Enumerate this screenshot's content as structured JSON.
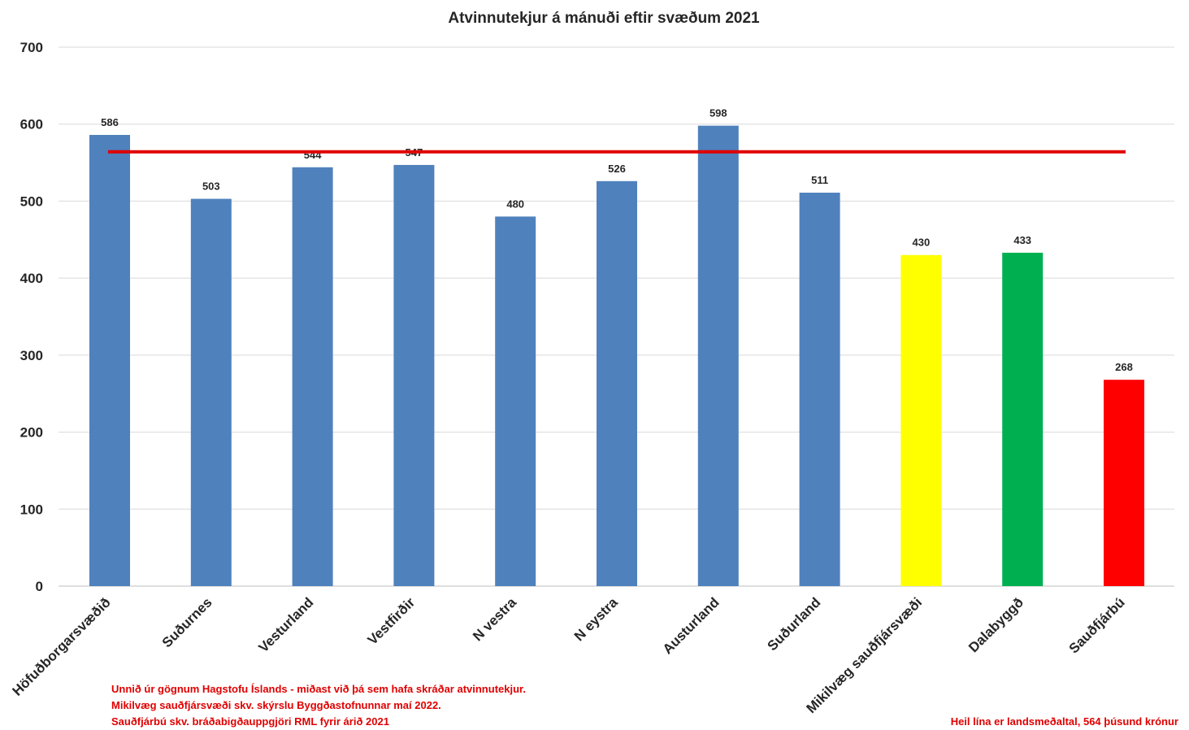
{
  "chart_data": {
    "type": "bar",
    "title": "Atvinnutekjur á mánuði eftir svæðum 2021",
    "categories": [
      "Höfuðborgarsvæðið",
      "Suðurnes",
      "Vesturland",
      "Vestfirðir",
      "N vestra",
      "N eystra",
      "Austurland",
      "Suðurland",
      "Mikilvæg sauðfjársvæði",
      "Dalabyggð",
      "Sauðfjárbú"
    ],
    "values": [
      586,
      503,
      544,
      547,
      480,
      526,
      598,
      511,
      430,
      433,
      268
    ],
    "bar_colors": [
      "#4f81bd",
      "#4f81bd",
      "#4f81bd",
      "#4f81bd",
      "#4f81bd",
      "#4f81bd",
      "#4f81bd",
      "#4f81bd",
      "#ffff00",
      "#00b050",
      "#ff0000"
    ],
    "ylim": [
      0,
      700
    ],
    "yticks": [
      "0",
      "100",
      "200",
      "300",
      "400",
      "500",
      "600",
      "700"
    ],
    "grid": true,
    "legend": "none",
    "reference_line": {
      "value": 564,
      "color": "#e00000"
    },
    "notes": [
      "Unnið úr gögnum Hagstofu Íslands - miðast við þá sem hafa skráðar atvinnutekjur.",
      "Mikilvæg sauðfjársvæði skv. skýrslu Byggðastofnunnar maí 2022.",
      "Sauðfjárbú skv. bráðabigðauppgjöri RML fyrir árið 2021"
    ],
    "reference_note": "Heil lína er landsmeðaltal, 564 þúsund krónur"
  }
}
